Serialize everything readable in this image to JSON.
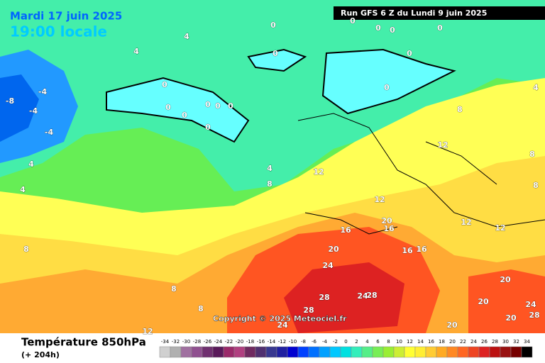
{
  "header": {
    "date": "Mardi 17 juin 2025",
    "time": "19:00 locale",
    "run": "Run GFS 6 Z du Lundi 9 juin 2025"
  },
  "copyright": "Copyright © 2025 Meteociel.fr",
  "footer": {
    "title": "Température 850hPa",
    "lead": "(+ 204h)"
  },
  "scale": {
    "values": [
      -34,
      -32,
      -30,
      -28,
      -26,
      -24,
      -22,
      -20,
      -18,
      -16,
      -14,
      -12,
      -10,
      -8,
      -6,
      -4,
      -2,
      0,
      2,
      4,
      6,
      8,
      10,
      12,
      14,
      16,
      18,
      20,
      22,
      24,
      26,
      28,
      30,
      32,
      34
    ],
    "colors": [
      "#d0d0d0",
      "#b0b0b0",
      "#a070a0",
      "#905090",
      "#703070",
      "#5a1a5a",
      "#9a2a6a",
      "#b04080",
      "#702a60",
      "#503070",
      "#383890",
      "#2020a0",
      "#0000d0",
      "#0040ff",
      "#0070ff",
      "#00a0ff",
      "#00c8ff",
      "#00e0e0",
      "#33eebb",
      "#55ee88",
      "#77ee55",
      "#99ee33",
      "#ccee33",
      "#ffff33",
      "#ffee33",
      "#ffcc33",
      "#ffaa22",
      "#ff8822",
      "#ff6622",
      "#ee4422",
      "#dd2222",
      "#bb1111",
      "#991111",
      "#770000",
      "#000000"
    ]
  },
  "map": {
    "contour_labels": [
      0,
      0,
      0,
      0,
      0,
      0,
      0,
      0,
      0,
      0,
      0,
      0,
      0,
      0,
      0,
      4,
      4,
      4,
      4,
      4,
      4,
      -4,
      -4,
      -4,
      -8,
      8,
      8,
      8,
      8,
      8,
      8,
      8,
      12,
      12,
      12,
      12,
      12,
      12,
      16,
      16,
      16,
      16,
      20,
      20,
      20,
      20,
      20,
      20,
      24,
      24,
      24,
      24,
      28,
      28,
      28,
      28
    ]
  }
}
